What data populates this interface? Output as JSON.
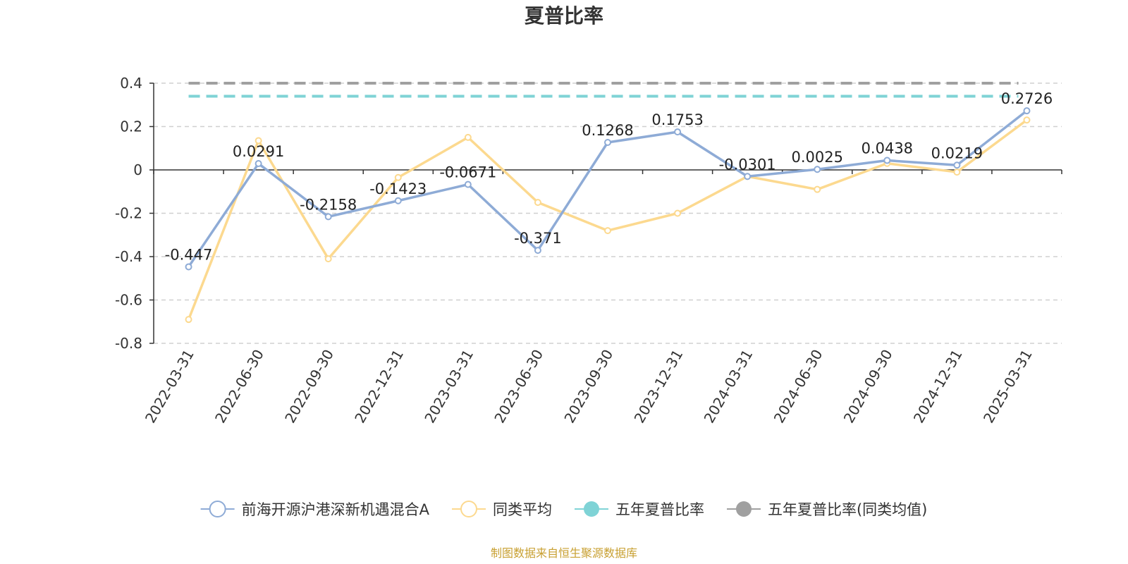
{
  "chart_data": {
    "type": "line",
    "title": "夏普比率",
    "categories": [
      "2022-03-31",
      "2022-06-30",
      "2022-09-30",
      "2022-12-31",
      "2023-03-31",
      "2023-06-30",
      "2023-09-30",
      "2023-12-31",
      "2024-03-31",
      "2024-06-30",
      "2024-09-30",
      "2024-12-31",
      "2025-03-31"
    ],
    "ylim": [
      -0.8,
      0.4
    ],
    "yticks": [
      0.4,
      0.2,
      0,
      -0.2,
      -0.4,
      -0.6,
      -0.8
    ],
    "ytick_labels": [
      "0.4",
      "0.2",
      "0",
      "-0.2",
      "-0.4",
      "-0.6",
      "-0.8"
    ],
    "grid": true,
    "legend_position": "bottom",
    "series": [
      {
        "name": "前海开源沪港深新机遇混合A",
        "color": "#8eabd6",
        "marker": "hollow-circle",
        "values": [
          -0.447,
          0.0291,
          -0.2158,
          -0.1423,
          -0.0671,
          -0.371,
          0.1268,
          0.1753,
          -0.0301,
          0.0025,
          0.0438,
          0.0219,
          0.2726
        ],
        "labels": [
          "-0.447",
          "0.0291",
          "-0.2158",
          "-0.1423",
          "-0.0671",
          "-0.371",
          "0.1268",
          "0.1753",
          "-0.0301",
          "0.0025",
          "0.0438",
          "0.0219",
          "0.2726"
        ]
      },
      {
        "name": "同类平均",
        "color": "#fcd98f",
        "marker": "hollow-circle",
        "values": [
          -0.69,
          0.135,
          -0.41,
          -0.035,
          0.15,
          -0.15,
          -0.28,
          -0.2,
          -0.03,
          -0.09,
          0.03,
          -0.01,
          0.23
        ]
      },
      {
        "name": "五年夏普比率",
        "color": "#7fd3d6",
        "marker": "filled-circle",
        "dashed": true,
        "value": 0.34
      },
      {
        "name": "五年夏普比率(同类均值)",
        "color": "#a0a0a0",
        "marker": "filled-circle",
        "dashed": true,
        "value": 0.4
      }
    ]
  },
  "source": "制图数据来自恒生聚源数据库"
}
